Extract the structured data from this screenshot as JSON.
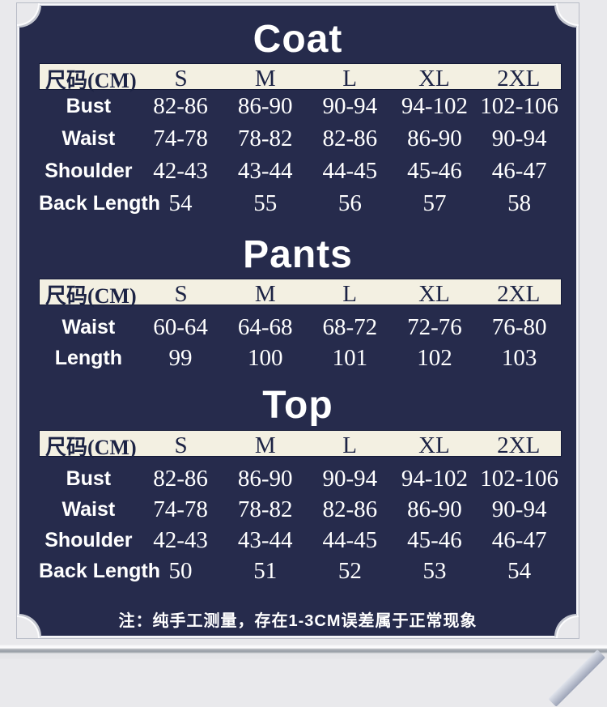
{
  "colors": {
    "panel_bg": "#262b4c",
    "header_band_bg": "#f3f0e2",
    "header_text": "#1c2344",
    "body_text": "#ffffff",
    "outer_bg": "#e9e9ec"
  },
  "note": "注：纯手工测量，存在1-3CM误差属于正常现象",
  "tables": [
    {
      "title": "Coat",
      "size_label": "尺码(CM)",
      "sizes": [
        "S",
        "M",
        "L",
        "XL",
        "2XL"
      ],
      "rows": [
        {
          "label": "Bust",
          "values": [
            "82-86",
            "86-90",
            "90-94",
            "94-102",
            "102-106"
          ]
        },
        {
          "label": "Waist",
          "values": [
            "74-78",
            "78-82",
            "82-86",
            "86-90",
            "90-94"
          ]
        },
        {
          "label": "Shoulder",
          "values": [
            "42-43",
            "43-44",
            "44-45",
            "45-46",
            "46-47"
          ]
        },
        {
          "label": "Back Length",
          "values": [
            "54",
            "55",
            "56",
            "57",
            "58"
          ]
        }
      ]
    },
    {
      "title": "Pants",
      "size_label": "尺码(CM)",
      "sizes": [
        "S",
        "M",
        "L",
        "XL",
        "2XL"
      ],
      "rows": [
        {
          "label": "Waist",
          "values": [
            "60-64",
            "64-68",
            "68-72",
            "72-76",
            "76-80"
          ]
        },
        {
          "label": "Length",
          "values": [
            "99",
            "100",
            "101",
            "102",
            "103"
          ]
        }
      ]
    },
    {
      "title": "Top",
      "size_label": "尺码(CM)",
      "sizes": [
        "S",
        "M",
        "L",
        "XL",
        "2XL"
      ],
      "rows": [
        {
          "label": "Bust",
          "values": [
            "82-86",
            "86-90",
            "90-94",
            "94-102",
            "102-106"
          ]
        },
        {
          "label": "Waist",
          "values": [
            "74-78",
            "78-82",
            "82-86",
            "86-90",
            "90-94"
          ]
        },
        {
          "label": "Shoulder",
          "values": [
            "42-43",
            "43-44",
            "44-45",
            "45-46",
            "46-47"
          ]
        },
        {
          "label": "Back Length",
          "values": [
            "50",
            "51",
            "52",
            "53",
            "54"
          ]
        }
      ]
    }
  ]
}
